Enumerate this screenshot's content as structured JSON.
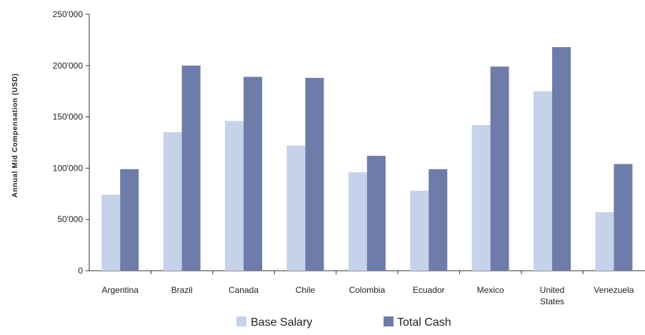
{
  "chart_data": {
    "type": "bar",
    "title": "",
    "xlabel": "",
    "ylabel": "Annual Mid Compensation (USD)",
    "ylim": [
      0,
      250000
    ],
    "yticks": [
      0,
      50000,
      100000,
      150000,
      200000,
      250000
    ],
    "ytick_labels": [
      "0",
      "50'000",
      "100'000",
      "150'000",
      "200'000",
      "250'000"
    ],
    "categories": [
      "Argentina",
      "Brazil",
      "Canada",
      "Chile",
      "Colombia",
      "Ecuador",
      "Mexico",
      "United States",
      "Venezuela"
    ],
    "category_lines": [
      [
        "Argentina"
      ],
      [
        "Brazil"
      ],
      [
        "Canada"
      ],
      [
        "Chile"
      ],
      [
        "Colombia"
      ],
      [
        "Ecuador"
      ],
      [
        "Mexico"
      ],
      [
        "United",
        "States"
      ],
      [
        "Venezuela"
      ]
    ],
    "series": [
      {
        "name": "Base Salary",
        "color": "#c6d1ea",
        "values": [
          74000,
          135000,
          146000,
          122000,
          96000,
          78000,
          142000,
          175000,
          57000
        ]
      },
      {
        "name": "Total Cash",
        "color": "#6d7ca8",
        "values": [
          99000,
          200000,
          189000,
          188000,
          112000,
          99000,
          199000,
          218000,
          104000
        ]
      }
    ],
    "grid": false,
    "legend_position": "bottom"
  }
}
